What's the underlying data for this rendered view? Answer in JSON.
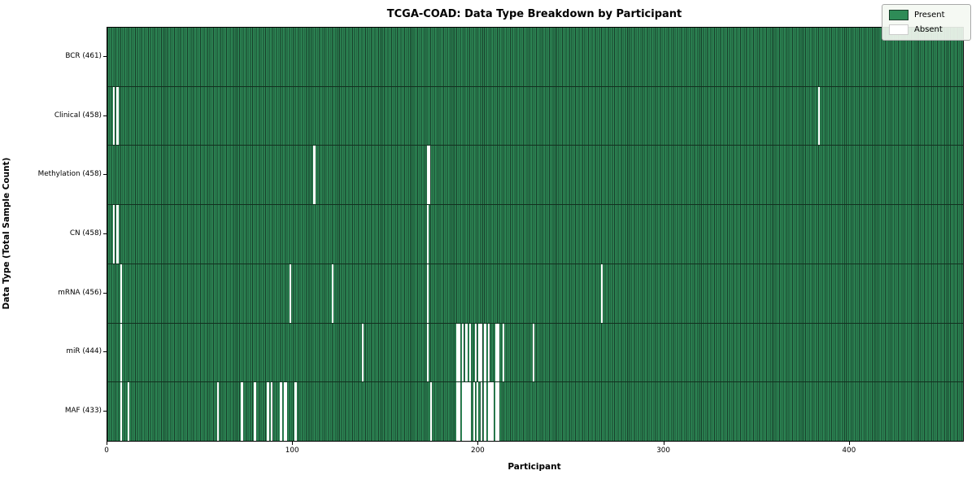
{
  "title": "TCGA-COAD: Data Type Breakdown by Participant",
  "xlabel": "Participant",
  "ylabel": "Data Type (Total Sample Count)",
  "legend": {
    "present_label": "Present",
    "absent_label": "Absent"
  },
  "colors": {
    "present": "#2e8b57",
    "absent": "#ffffff",
    "bar_edge": "#173c29",
    "legend_bg": "rgba(244,248,242,0.9)"
  },
  "chart_data": {
    "type": "heatmap",
    "title": "TCGA-COAD: Data Type Breakdown by Participant",
    "xlabel": "Participant",
    "ylabel": "Data Type (Total Sample Count)",
    "x_range": [
      0,
      461
    ],
    "x_ticks": [
      0,
      100,
      200,
      300,
      400
    ],
    "n_participants": 461,
    "legend_position": "upper right",
    "cell_states": {
      "present": "green",
      "absent": "white"
    },
    "rows": [
      {
        "name": "bcr",
        "label": "BCR (461)",
        "present_count": 461,
        "absent_participants": []
      },
      {
        "name": "clinical",
        "label": "Clinical (458)",
        "present_count": 458,
        "absent_participants": [
          3,
          5,
          383
        ]
      },
      {
        "name": "methylation",
        "label": "Methylation (458)",
        "present_count": 458,
        "absent_participants": [
          111,
          172,
          173
        ]
      },
      {
        "name": "cn",
        "label": "CN (458)",
        "present_count": 458,
        "absent_participants": [
          3,
          5,
          172
        ]
      },
      {
        "name": "mrna",
        "label": "mRNA (456)",
        "present_count": 456,
        "absent_participants": [
          7,
          98,
          121,
          172,
          266
        ]
      },
      {
        "name": "mir",
        "label": "miR (444)",
        "present_count": 444,
        "absent_participants": [
          7,
          137,
          172,
          188,
          189,
          191,
          193,
          195,
          198,
          200,
          201,
          203,
          205,
          209,
          210,
          213,
          229
        ]
      },
      {
        "name": "maf",
        "label": "MAF (433)",
        "present_count": 433,
        "absent_participants": [
          7,
          11,
          59,
          72,
          79,
          86,
          88,
          93,
          95,
          96,
          101,
          174,
          188,
          189,
          191,
          192,
          193,
          194,
          195,
          197,
          199,
          201,
          203,
          205,
          206,
          207,
          209,
          210
        ]
      }
    ]
  }
}
